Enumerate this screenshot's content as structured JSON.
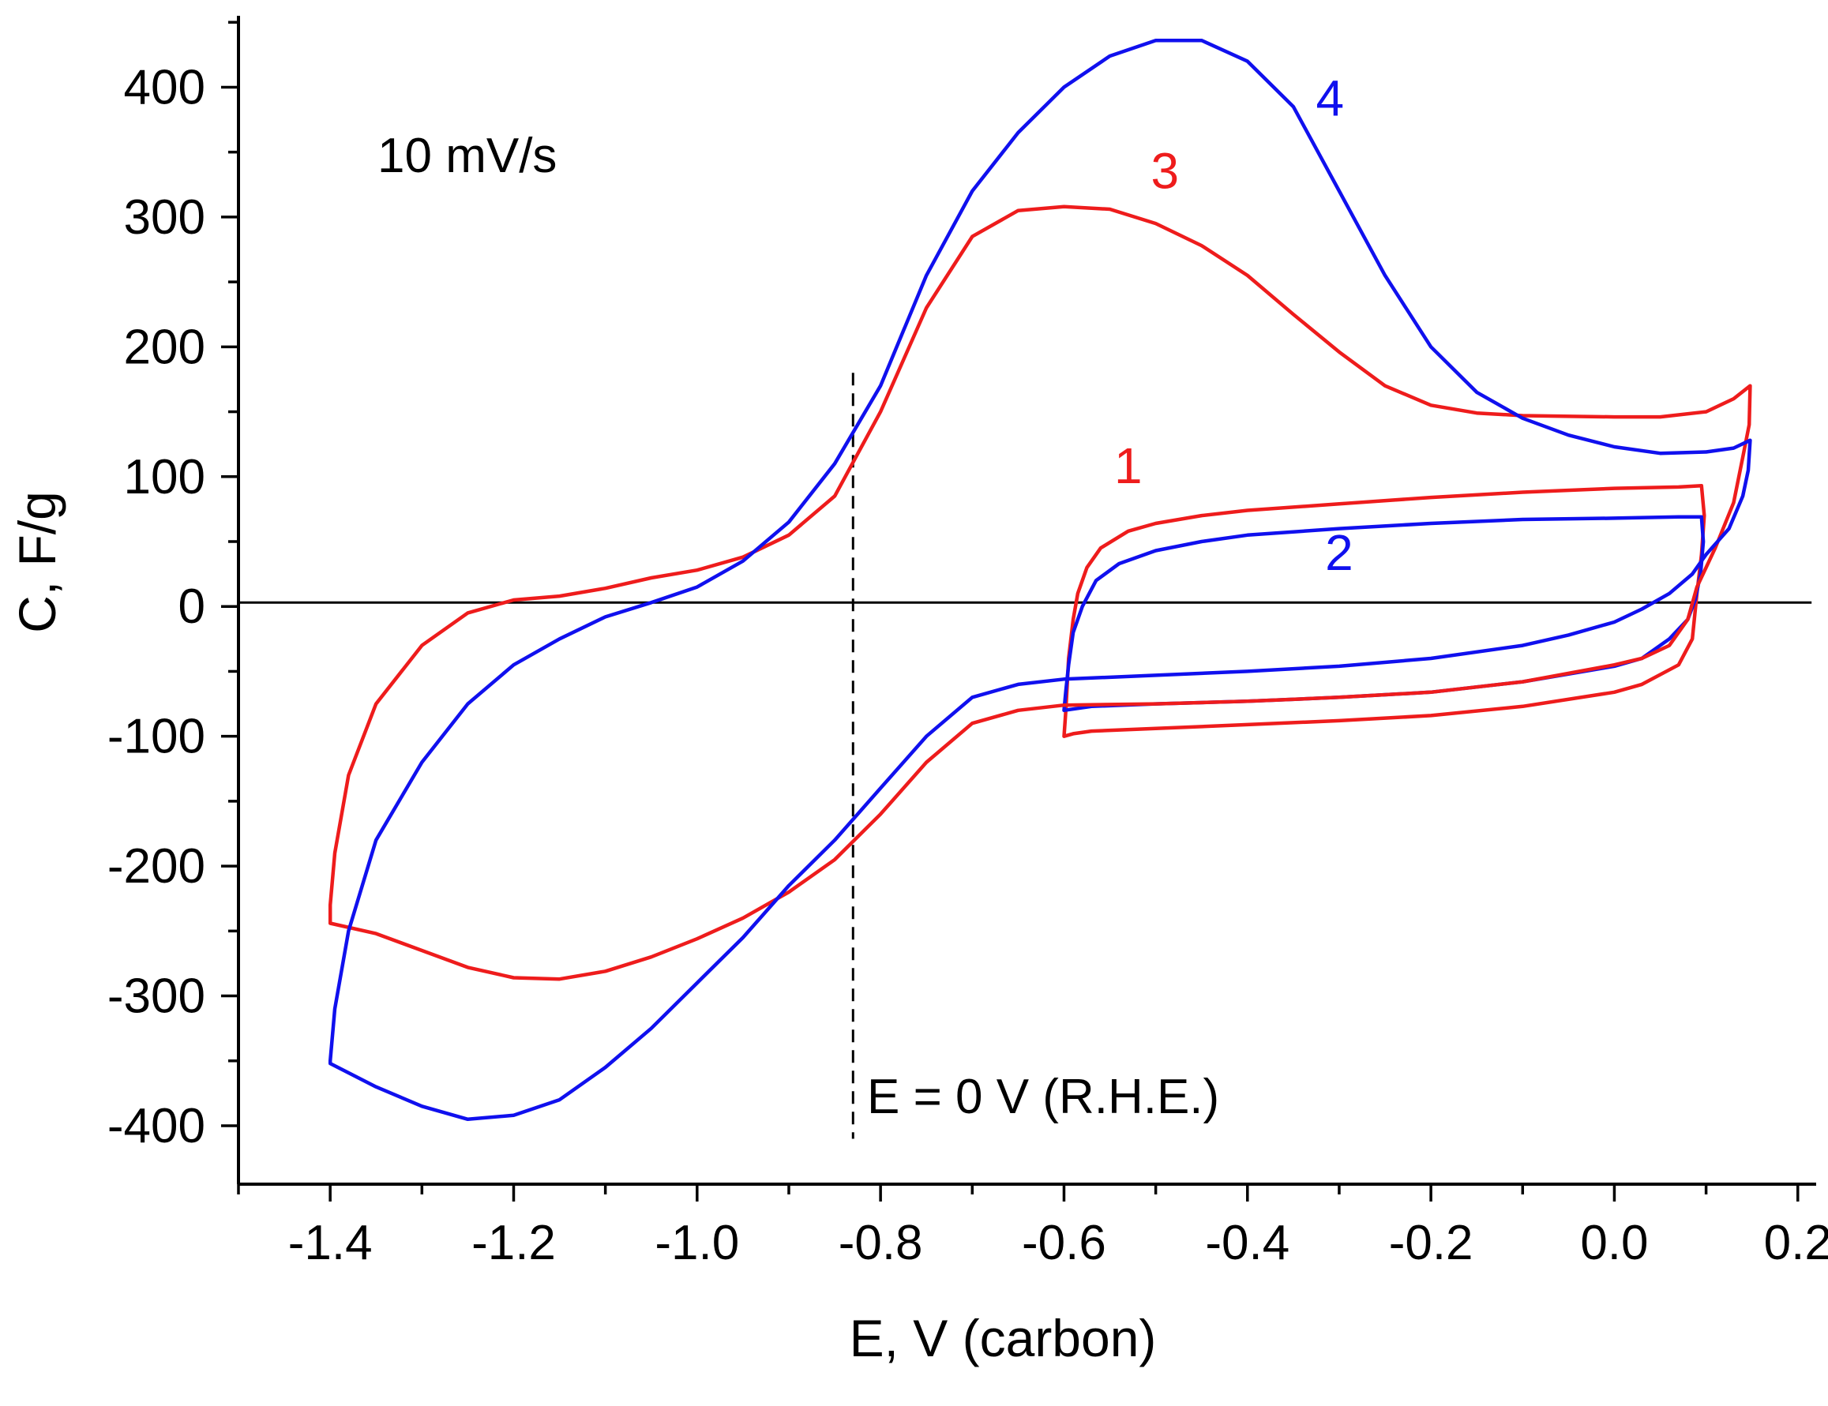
{
  "chart_data": {
    "type": "line",
    "title": "",
    "xlabel": "E, V (carbon)",
    "ylabel": "C, F/g",
    "xlim": [
      -1.5,
      0.22
    ],
    "ylim": [
      -445,
      455
    ],
    "x_ticks": [
      -1.4,
      -1.2,
      -1.0,
      -0.8,
      -0.6,
      -0.4,
      -0.2,
      0.0,
      0.2
    ],
    "x_tick_labels": [
      "-1.4",
      "-1.2",
      "-1.0",
      "-0.8",
      "-0.6",
      "-0.4",
      "-0.2",
      "0.0",
      "0.2"
    ],
    "y_ticks": [
      -400,
      -300,
      -200,
      -100,
      0,
      100,
      200,
      300,
      400
    ],
    "y_tick_labels": [
      "-400",
      "-300",
      "-200",
      "-100",
      "0",
      "100",
      "200",
      "300",
      "400"
    ],
    "grid": false,
    "annotations": {
      "scan_rate": "10 mV/s",
      "reference": "E = 0 V (R.H.E.)",
      "reference_x": -0.83,
      "zero_line_y": 3
    },
    "colors": {
      "red": "#ee1c1c",
      "blue": "#1010ee"
    },
    "series": [
      {
        "name": "1",
        "color": "#ee1c1c",
        "label_at": [
          -0.53,
          95
        ],
        "points": [
          [
            -0.6,
            -100
          ],
          [
            -0.598,
            -80
          ],
          [
            -0.595,
            -40
          ],
          [
            -0.59,
            -10
          ],
          [
            -0.585,
            10
          ],
          [
            -0.575,
            30
          ],
          [
            -0.56,
            45
          ],
          [
            -0.53,
            58
          ],
          [
            -0.5,
            64
          ],
          [
            -0.45,
            70
          ],
          [
            -0.4,
            74
          ],
          [
            -0.3,
            79
          ],
          [
            -0.2,
            84
          ],
          [
            -0.1,
            88
          ],
          [
            0.0,
            91
          ],
          [
            0.07,
            92
          ],
          [
            0.095,
            93
          ],
          [
            0.098,
            70
          ],
          [
            0.095,
            40
          ],
          [
            0.09,
            10
          ],
          [
            0.085,
            -25
          ],
          [
            0.07,
            -45
          ],
          [
            0.03,
            -60
          ],
          [
            0.0,
            -66
          ],
          [
            -0.1,
            -77
          ],
          [
            -0.2,
            -84
          ],
          [
            -0.3,
            -88
          ],
          [
            -0.4,
            -91
          ],
          [
            -0.5,
            -94
          ],
          [
            -0.57,
            -96
          ],
          [
            -0.59,
            -98
          ],
          [
            -0.6,
            -100
          ]
        ]
      },
      {
        "name": "2",
        "color": "#1010ee",
        "label_at": [
          -0.3,
          28
        ],
        "points": [
          [
            -0.6,
            -80
          ],
          [
            -0.598,
            -65
          ],
          [
            -0.595,
            -45
          ],
          [
            -0.59,
            -20
          ],
          [
            -0.58,
            0
          ],
          [
            -0.565,
            20
          ],
          [
            -0.54,
            33
          ],
          [
            -0.5,
            43
          ],
          [
            -0.45,
            50
          ],
          [
            -0.4,
            55
          ],
          [
            -0.3,
            60
          ],
          [
            -0.2,
            64
          ],
          [
            -0.1,
            67
          ],
          [
            0.0,
            68
          ],
          [
            0.07,
            69
          ],
          [
            0.095,
            69
          ],
          [
            0.097,
            50
          ],
          [
            0.094,
            25
          ],
          [
            0.088,
            5
          ],
          [
            0.08,
            -10
          ],
          [
            0.06,
            -25
          ],
          [
            0.03,
            -40
          ],
          [
            0.0,
            -46
          ],
          [
            -0.1,
            -58
          ],
          [
            -0.2,
            -66
          ],
          [
            -0.3,
            -70
          ],
          [
            -0.4,
            -73
          ],
          [
            -0.5,
            -75
          ],
          [
            -0.57,
            -77
          ],
          [
            -0.6,
            -80
          ]
        ]
      },
      {
        "name": "3",
        "color": "#ee1c1c",
        "label_at": [
          -0.49,
          322
        ],
        "points": [
          [
            -1.4,
            -230
          ],
          [
            -1.395,
            -190
          ],
          [
            -1.38,
            -130
          ],
          [
            -1.35,
            -75
          ],
          [
            -1.3,
            -30
          ],
          [
            -1.25,
            -5
          ],
          [
            -1.2,
            5
          ],
          [
            -1.15,
            8
          ],
          [
            -1.1,
            14
          ],
          [
            -1.05,
            22
          ],
          [
            -1.0,
            28
          ],
          [
            -0.95,
            38
          ],
          [
            -0.9,
            55
          ],
          [
            -0.85,
            85
          ],
          [
            -0.8,
            150
          ],
          [
            -0.75,
            230
          ],
          [
            -0.7,
            285
          ],
          [
            -0.65,
            305
          ],
          [
            -0.6,
            308
          ],
          [
            -0.55,
            306
          ],
          [
            -0.5,
            295
          ],
          [
            -0.45,
            278
          ],
          [
            -0.4,
            255
          ],
          [
            -0.35,
            225
          ],
          [
            -0.3,
            196
          ],
          [
            -0.25,
            170
          ],
          [
            -0.2,
            155
          ],
          [
            -0.15,
            149
          ],
          [
            -0.1,
            147
          ],
          [
            0.0,
            146
          ],
          [
            0.05,
            146
          ],
          [
            0.1,
            150
          ],
          [
            0.13,
            160
          ],
          [
            0.148,
            170
          ],
          [
            0.147,
            140
          ],
          [
            0.14,
            115
          ],
          [
            0.13,
            80
          ],
          [
            0.11,
            45
          ],
          [
            0.09,
            15
          ],
          [
            0.08,
            -10
          ],
          [
            0.06,
            -30
          ],
          [
            0.03,
            -40
          ],
          [
            0.0,
            -45
          ],
          [
            -0.1,
            -58
          ],
          [
            -0.2,
            -66
          ],
          [
            -0.3,
            -70
          ],
          [
            -0.4,
            -73
          ],
          [
            -0.5,
            -75
          ],
          [
            -0.6,
            -76
          ],
          [
            -0.65,
            -80
          ],
          [
            -0.7,
            -90
          ],
          [
            -0.75,
            -120
          ],
          [
            -0.8,
            -160
          ],
          [
            -0.85,
            -195
          ],
          [
            -0.9,
            -220
          ],
          [
            -0.95,
            -240
          ],
          [
            -1.0,
            -256
          ],
          [
            -1.05,
            -270
          ],
          [
            -1.1,
            -281
          ],
          [
            -1.15,
            -287
          ],
          [
            -1.2,
            -286
          ],
          [
            -1.25,
            -278
          ],
          [
            -1.3,
            -265
          ],
          [
            -1.35,
            -252
          ],
          [
            -1.4,
            -244
          ],
          [
            -1.4,
            -230
          ]
        ]
      },
      {
        "name": "4",
        "color": "#1010ee",
        "label_at": [
          -0.31,
          378
        ],
        "points": [
          [
            -1.4,
            -350
          ],
          [
            -1.395,
            -310
          ],
          [
            -1.38,
            -250
          ],
          [
            -1.35,
            -180
          ],
          [
            -1.3,
            -120
          ],
          [
            -1.25,
            -75
          ],
          [
            -1.2,
            -45
          ],
          [
            -1.15,
            -25
          ],
          [
            -1.1,
            -8
          ],
          [
            -1.05,
            3
          ],
          [
            -1.0,
            15
          ],
          [
            -0.95,
            35
          ],
          [
            -0.9,
            65
          ],
          [
            -0.85,
            110
          ],
          [
            -0.8,
            170
          ],
          [
            -0.75,
            255
          ],
          [
            -0.7,
            320
          ],
          [
            -0.65,
            365
          ],
          [
            -0.6,
            400
          ],
          [
            -0.55,
            424
          ],
          [
            -0.5,
            436
          ],
          [
            -0.45,
            436
          ],
          [
            -0.4,
            420
          ],
          [
            -0.35,
            385
          ],
          [
            -0.3,
            320
          ],
          [
            -0.25,
            255
          ],
          [
            -0.2,
            200
          ],
          [
            -0.15,
            165
          ],
          [
            -0.1,
            145
          ],
          [
            -0.05,
            132
          ],
          [
            0.0,
            123
          ],
          [
            0.05,
            118
          ],
          [
            0.1,
            119
          ],
          [
            0.13,
            122
          ],
          [
            0.148,
            128
          ],
          [
            0.146,
            105
          ],
          [
            0.14,
            85
          ],
          [
            0.125,
            60
          ],
          [
            0.1,
            40
          ],
          [
            0.085,
            25
          ],
          [
            0.06,
            10
          ],
          [
            0.03,
            -2
          ],
          [
            0.0,
            -12
          ],
          [
            -0.05,
            -22
          ],
          [
            -0.1,
            -30
          ],
          [
            -0.2,
            -40
          ],
          [
            -0.3,
            -46
          ],
          [
            -0.4,
            -50
          ],
          [
            -0.5,
            -53
          ],
          [
            -0.6,
            -56
          ],
          [
            -0.65,
            -60
          ],
          [
            -0.7,
            -70
          ],
          [
            -0.75,
            -100
          ],
          [
            -0.8,
            -140
          ],
          [
            -0.85,
            -180
          ],
          [
            -0.9,
            -215
          ],
          [
            -0.95,
            -255
          ],
          [
            -1.0,
            -290
          ],
          [
            -1.05,
            -325
          ],
          [
            -1.1,
            -355
          ],
          [
            -1.15,
            -380
          ],
          [
            -1.2,
            -392
          ],
          [
            -1.25,
            -395
          ],
          [
            -1.3,
            -385
          ],
          [
            -1.35,
            -370
          ],
          [
            -1.4,
            -352
          ],
          [
            -1.4,
            -350
          ]
        ]
      }
    ]
  }
}
